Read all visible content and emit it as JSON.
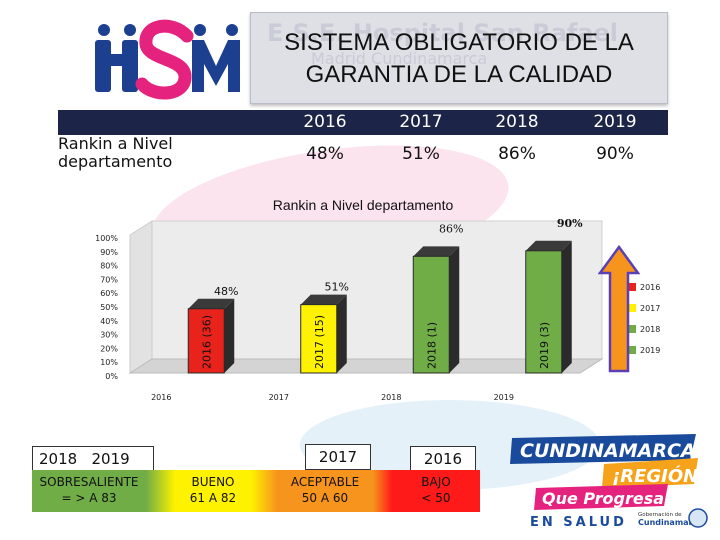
{
  "logo_text": "HSM",
  "title": "SISTEMA OBLIGATORIO DE LA GARANTIA DE LA CALIDAD",
  "title_line1": "SISTEMA OBLIGATORIO DE LA",
  "title_line2": "GARANTIA DE LA CALIDAD",
  "title_ghost": "E.S.E. Hospital San Rafael",
  "title_ghost2": "Madrid Cundinamarca",
  "table": {
    "row_label": "Rankin a Nivel departamento",
    "years": [
      "2016",
      "2017",
      "2018",
      "2019"
    ],
    "values": [
      "48%",
      "51%",
      "86%",
      "90%"
    ]
  },
  "chart_data": {
    "type": "bar",
    "title": "Rankin a Nivel departamento",
    "categories": [
      "2016",
      "2017",
      "2018",
      "2019"
    ],
    "values": [
      48,
      51,
      86,
      90
    ],
    "value_labels": [
      "48%",
      "51%",
      "86%",
      "90%"
    ],
    "bar_labels": [
      "2016 (36)",
      "2017 (15)",
      "2018 (1)",
      "2019 (3)"
    ],
    "colors": [
      "#e8231c",
      "#fff200",
      "#70ad47",
      "#70ad47"
    ],
    "yticks": [
      "100%",
      "90%",
      "80%",
      "70%",
      "60%",
      "50%",
      "40%",
      "30%",
      "20%",
      "10%",
      "0%"
    ],
    "ylim": [
      0,
      100
    ],
    "legend": [
      "2016",
      "2017",
      "2018",
      "2019"
    ],
    "legend_position": "right",
    "xlabel": "",
    "ylabel": ""
  },
  "bottom": {
    "tab_2018_2019": "2018   2019",
    "tab_2017": "2017",
    "tab_2016": "2016",
    "boxes": [
      {
        "line1": "SOBRESALIENTE",
        "line2": "= > A 83",
        "color": "#70ad47"
      },
      {
        "line1": "BUENO",
        "line2": "61 A 82",
        "color": "#fff200"
      },
      {
        "line1": "ACEPTABLE",
        "line2": "50 A 60",
        "color": "#f7941d"
      },
      {
        "line1": "BAJO",
        "line2": "< 50",
        "color": "#ff1a1a"
      }
    ]
  },
  "banner": {
    "line1": "CUNDINAMARCA",
    "line2": "¡REGIÓN",
    "line3": "Que Progresa!",
    "line4": "EN SALUD",
    "line5": "Gobernación de",
    "line6": "Cundinamarca"
  }
}
